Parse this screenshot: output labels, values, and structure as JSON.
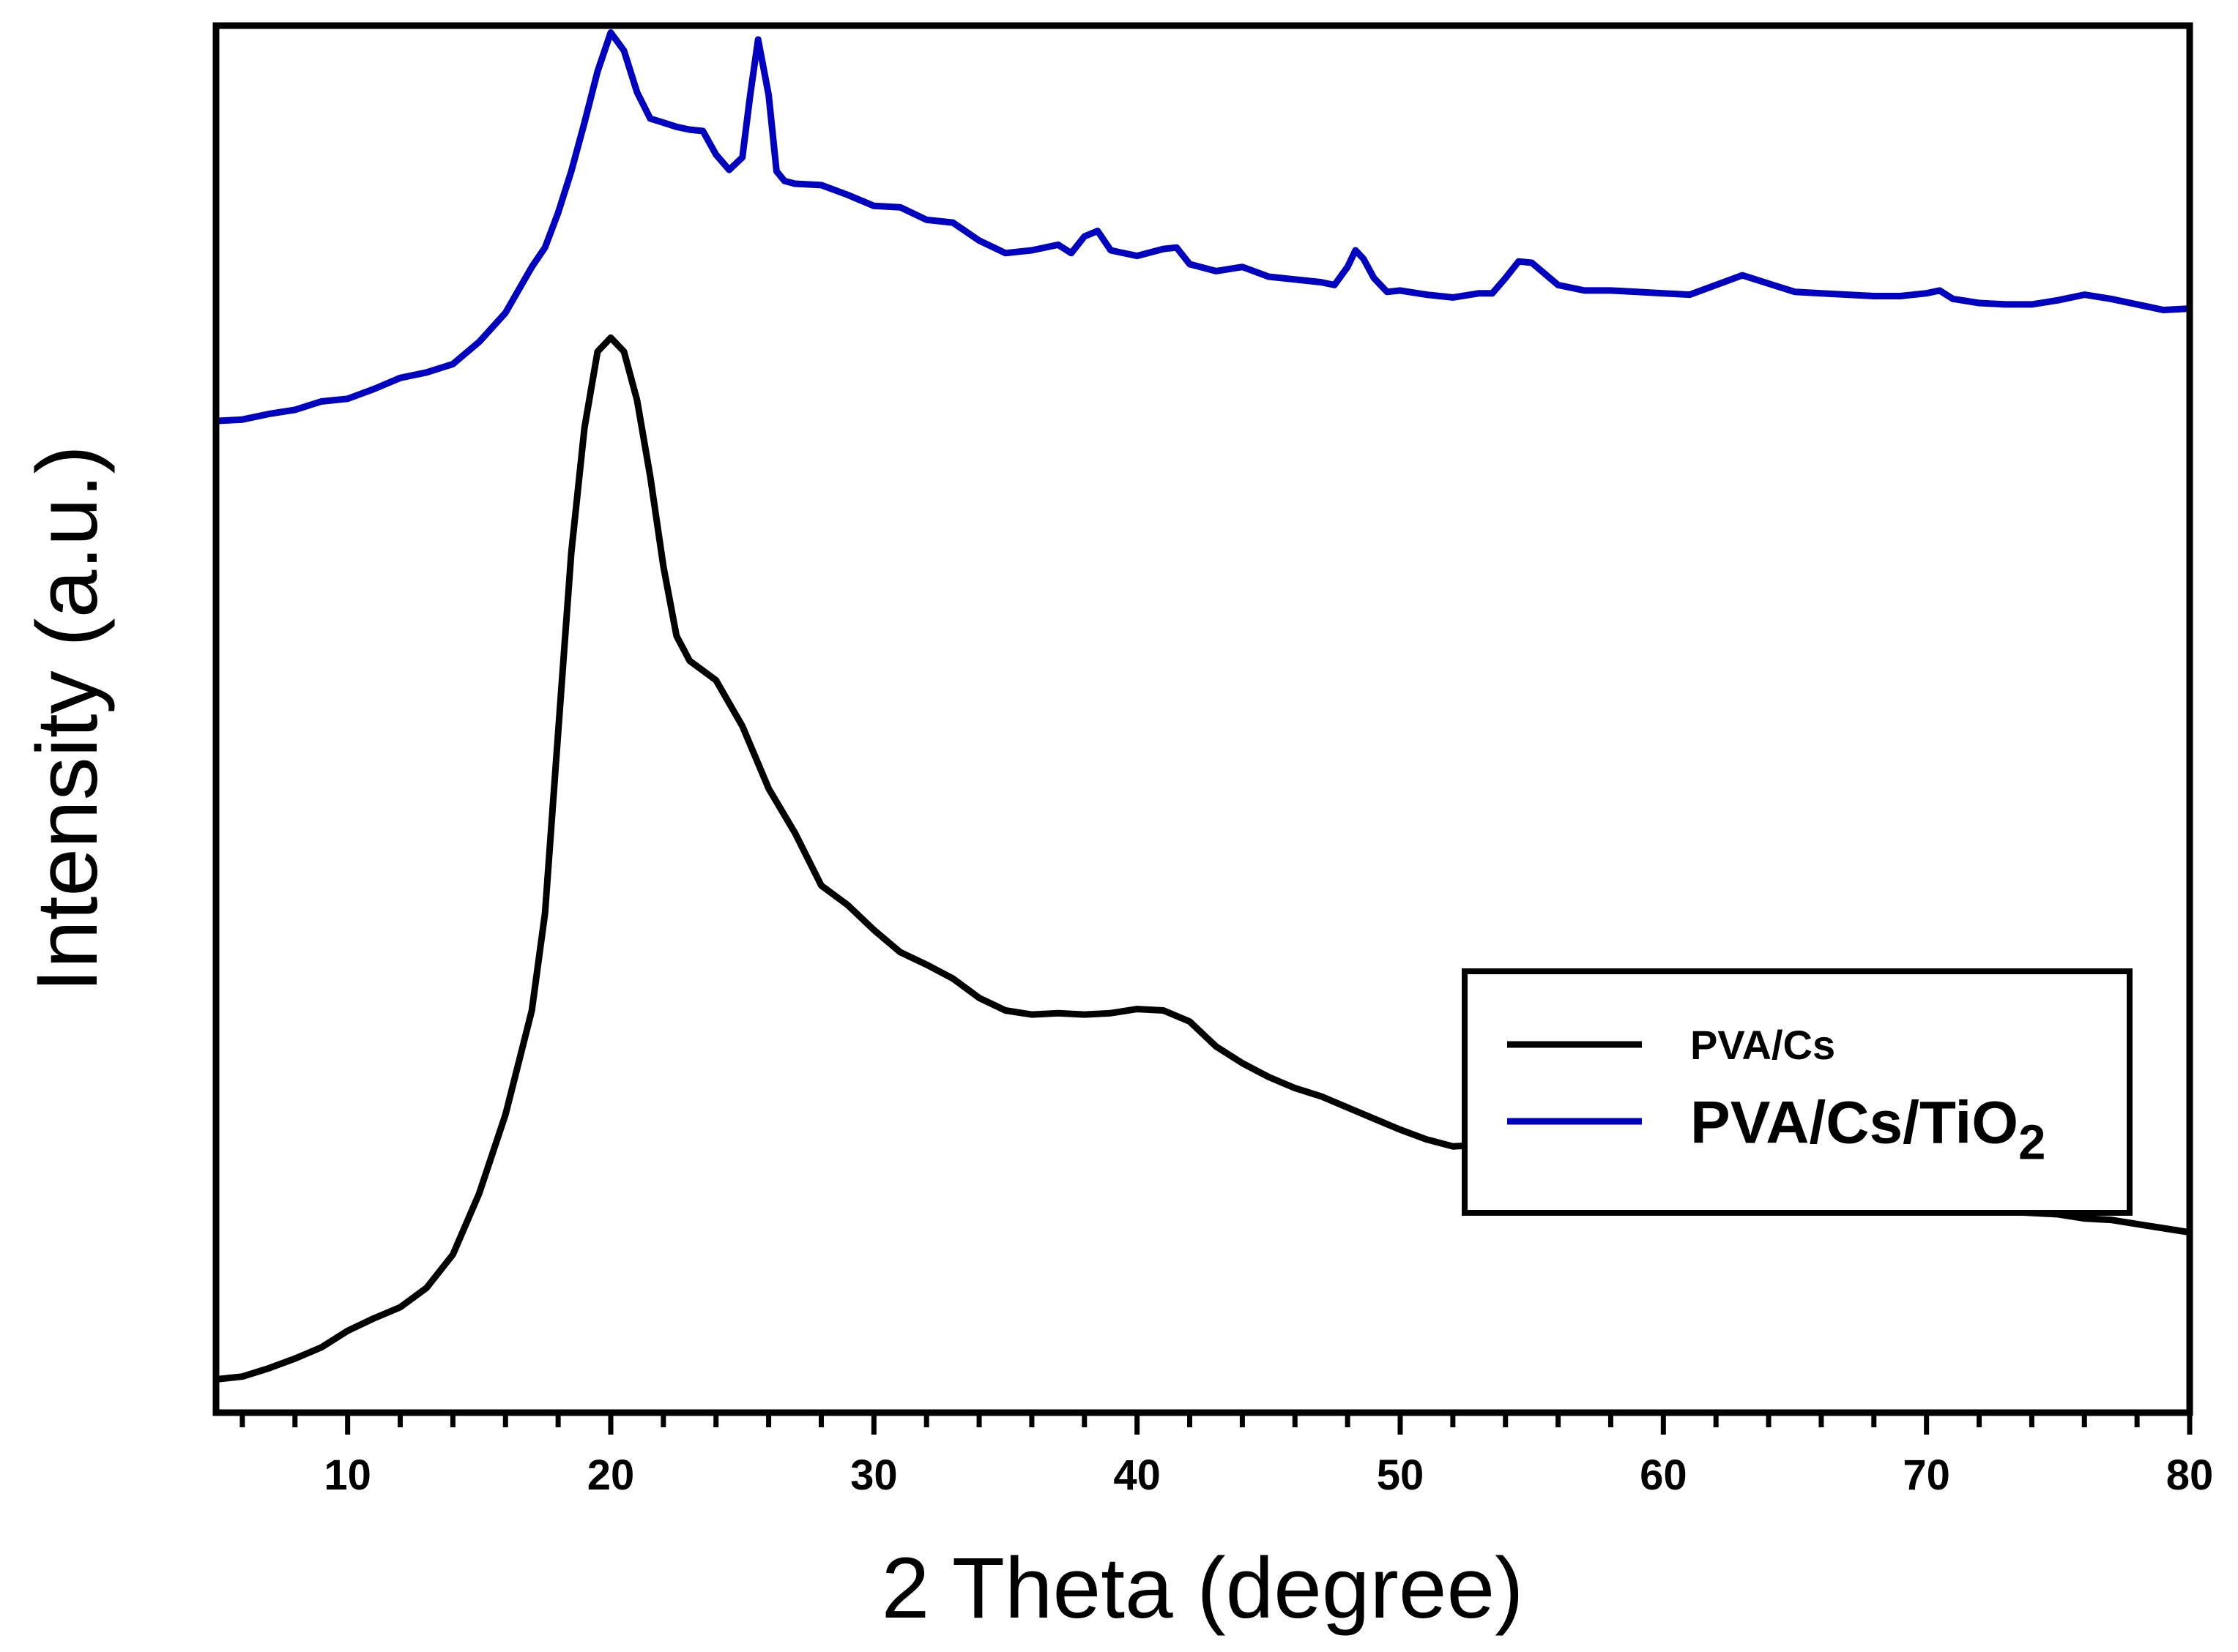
{
  "colors": {
    "series1": "#000000",
    "series2": "#0000c0",
    "axis": "#000000",
    "background": "#ffffff"
  },
  "chart_data": {
    "type": "line",
    "title": "",
    "xlabel": "2 Theta (degree)",
    "ylabel": "Intensity (a.u.)",
    "xlim": [
      5,
      80
    ],
    "ylim": [
      0,
      100
    ],
    "xticks_labeled": [
      10,
      20,
      30,
      40,
      50,
      60,
      70,
      80
    ],
    "xticks_minor_step": 2,
    "y_tick_labels_shown": false,
    "grid": false,
    "legend_position": "bottom-right",
    "series": [
      {
        "name": "PVA/Cs",
        "name_parts": {
          "base": "PVA/Cs",
          "sub": ""
        },
        "color": "#000000",
        "x": [
          5,
          6,
          7,
          8,
          9,
          10,
          11,
          12,
          13,
          14,
          15,
          16,
          17,
          17.5,
          18,
          18.5,
          19,
          19.5,
          20,
          20.5,
          21,
          21.5,
          22,
          22.5,
          23,
          24,
          25,
          26,
          27,
          28,
          29,
          30,
          31,
          32,
          33,
          34,
          35,
          36,
          37,
          38,
          39,
          40,
          41,
          42,
          43,
          44,
          45,
          46,
          47,
          48,
          49,
          50,
          51,
          52,
          53,
          54,
          55,
          56,
          57,
          58,
          59,
          60,
          61,
          62,
          63,
          64,
          65,
          66,
          67,
          68,
          69,
          70,
          71,
          72,
          73,
          74,
          75,
          76,
          77,
          78,
          79,
          80
        ],
        "y": [
          2.4,
          2.6,
          3.2,
          3.9,
          4.7,
          5.9,
          6.8,
          7.6,
          9.0,
          11.4,
          15.8,
          21.5,
          29.0,
          36.0,
          49.0,
          62.0,
          71.0,
          76.5,
          77.5,
          76.5,
          73.0,
          67.5,
          61.0,
          56.0,
          54.2,
          52.8,
          49.5,
          45.0,
          41.8,
          38.0,
          36.6,
          34.8,
          33.2,
          32.3,
          31.3,
          29.9,
          29.0,
          28.7,
          28.8,
          28.7,
          28.8,
          29.1,
          29.0,
          28.2,
          26.4,
          25.2,
          24.2,
          23.4,
          22.8,
          22.0,
          21.2,
          20.4,
          19.7,
          19.2,
          19.3,
          19.0,
          18.3,
          17.3,
          16.7,
          16.6,
          16.6,
          16.7,
          16.8,
          16.8,
          16.5,
          16.3,
          16.1,
          15.7,
          15.4,
          15.2,
          15.1,
          15.0,
          14.9,
          14.6,
          14.5,
          14.4,
          14.3,
          14.0,
          13.9,
          13.6,
          13.3,
          13.0
        ]
      },
      {
        "name": "PVA/Cs/TiO2",
        "name_parts": {
          "base": "PVA/Cs/TiO",
          "sub": "2"
        },
        "color": "#0000c0",
        "x": [
          5,
          6,
          7,
          8,
          9,
          10,
          11,
          12,
          13,
          14,
          15,
          16,
          17,
          17.5,
          18,
          18.5,
          19,
          19.5,
          20,
          20.5,
          21,
          21.5,
          22,
          22.5,
          23,
          23.5,
          24,
          24.5,
          25,
          25.3,
          25.6,
          26,
          26.3,
          26.6,
          27,
          28,
          29,
          30,
          31,
          32,
          33,
          34,
          35,
          36,
          37,
          37.5,
          38,
          38.5,
          39,
          40,
          41,
          41.5,
          42,
          43,
          44,
          45,
          46,
          47,
          47.5,
          48,
          48.3,
          48.6,
          49,
          49.5,
          50,
          51,
          52,
          53,
          53.5,
          54,
          54.5,
          55,
          56,
          57,
          58,
          59,
          60,
          61,
          62,
          63,
          64,
          65,
          66,
          67,
          68,
          69,
          70,
          70.5,
          71,
          72,
          73,
          74,
          75,
          76,
          77,
          78,
          79,
          80
        ],
        "y": [
          71.5,
          71.6,
          72.0,
          72.3,
          72.9,
          73.1,
          73.8,
          74.6,
          75.0,
          75.6,
          77.2,
          79.3,
          82.6,
          84.0,
          86.5,
          89.5,
          93.0,
          96.7,
          99.5,
          98.2,
          95.2,
          93.3,
          93.0,
          92.7,
          92.5,
          92.4,
          90.7,
          89.6,
          90.5,
          95.0,
          99.0,
          95.0,
          89.5,
          88.8,
          88.6,
          88.5,
          87.8,
          87.0,
          86.9,
          86.0,
          85.8,
          84.5,
          83.6,
          83.8,
          84.2,
          83.6,
          84.8,
          85.2,
          83.8,
          83.4,
          83.9,
          84.0,
          82.8,
          82.3,
          82.6,
          81.9,
          81.7,
          81.5,
          81.3,
          82.6,
          83.8,
          83.2,
          81.8,
          80.8,
          80.9,
          80.6,
          80.4,
          80.7,
          80.7,
          81.8,
          83.0,
          82.9,
          81.3,
          80.9,
          80.9,
          80.8,
          80.7,
          80.6,
          81.3,
          82.0,
          81.4,
          80.8,
          80.7,
          80.6,
          80.5,
          80.5,
          80.7,
          80.9,
          80.3,
          80.0,
          79.9,
          79.9,
          80.2,
          80.6,
          80.3,
          79.9,
          79.5,
          79.6
        ]
      }
    ]
  }
}
